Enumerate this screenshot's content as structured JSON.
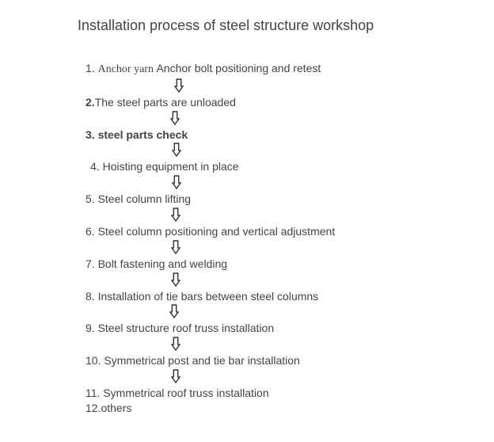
{
  "title": "Installation process of steel structure workshop",
  "colors": {
    "background": "#ffffff",
    "text": "#444444",
    "arrow_stroke": "#333333",
    "arrow_fill": "#ffffff"
  },
  "typography": {
    "title_fontsize": 18,
    "step_fontsize": 14,
    "font_family": "Microsoft YaHei / Segoe UI"
  },
  "flow": {
    "type": "flowchart",
    "direction": "vertical",
    "steps": [
      {
        "num": "1.",
        "prefix": "Anchor yarn ",
        "text": "Anchor bolt positioning  and  retest",
        "arrow_after": true,
        "arrow_indent": 112
      },
      {
        "num": "2.",
        "prefix": "",
        "text": "The steel parts are unloaded",
        "arrow_after": true,
        "arrow_indent": 107,
        "bold_num": true
      },
      {
        "num": "3.",
        "prefix": "",
        "text": " steel parts check",
        "arrow_after": true,
        "arrow_indent": 109,
        "bold_all": true
      },
      {
        "num": "4.",
        "prefix": "",
        "text": "   Hoisting equipment in place",
        "arrow_after": true,
        "arrow_indent": 109,
        "pad": true
      },
      {
        "num": "5.",
        "prefix": "",
        "text": " Steel column lifting",
        "arrow_after": true,
        "arrow_indent": 108
      },
      {
        "num": "6.",
        "prefix": "",
        "text": " Steel column positioning and vertical adjustment",
        "arrow_after": true,
        "arrow_indent": 108
      },
      {
        "num": "7.",
        "prefix": "",
        "text": " Bolt fastening and welding",
        "arrow_after": true,
        "arrow_indent": 108
      },
      {
        "num": "8.",
        "prefix": "",
        "text": " Installation of tie bars between steel columns",
        "arrow_after": true,
        "arrow_indent": 106
      },
      {
        "num": "9.",
        "prefix": "",
        "text": " Steel structure roof truss installation",
        "arrow_after": true,
        "arrow_indent": 108
      },
      {
        "num": "10.",
        "prefix": "",
        "text": " Symmetrical post and tie bar installation",
        "arrow_after": true,
        "arrow_indent": 108
      },
      {
        "num": "11.",
        "prefix": "",
        "text": " Symmetrical roof truss installation",
        "arrow_after": false
      },
      {
        "num": "12.",
        "prefix": "",
        "text": "others",
        "arrow_after": false
      }
    ],
    "arrow": {
      "width": 12,
      "height": 18,
      "stroke_width": 1.4
    }
  }
}
